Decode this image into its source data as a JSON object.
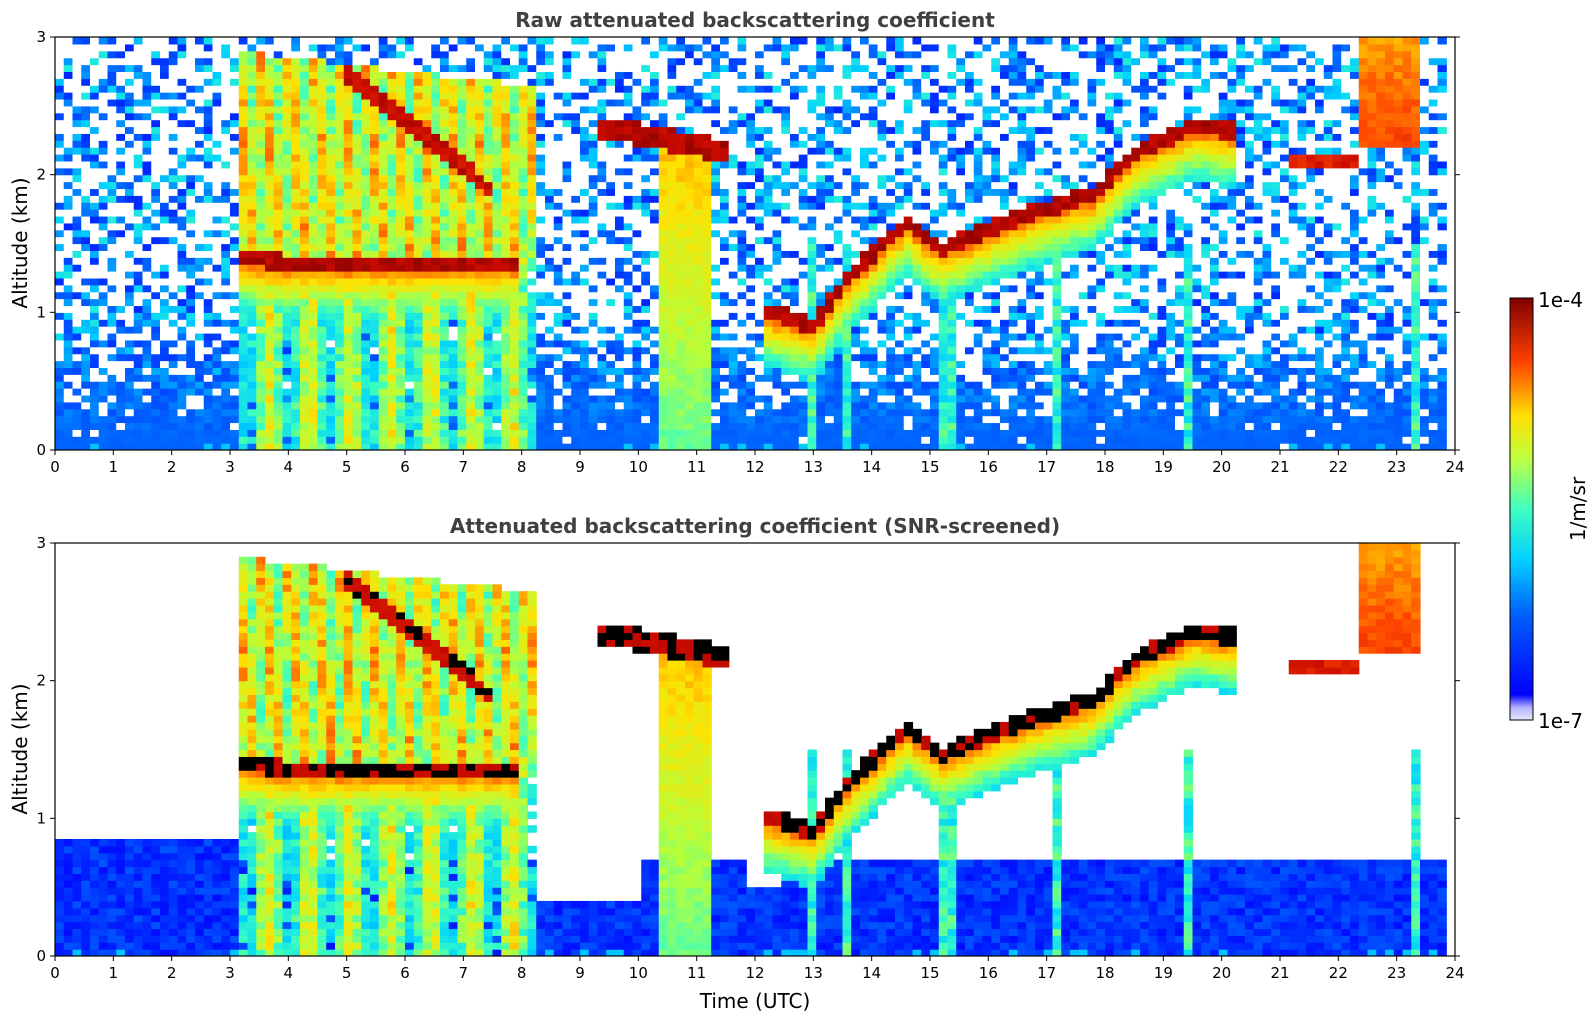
{
  "chart_data": [
    {
      "type": "heatmap",
      "title": "Raw attenuated backscattering coefficient",
      "xlabel": "",
      "ylabel": "Altitude (km)",
      "xlim": [
        0,
        24
      ],
      "ylim": [
        0,
        3
      ],
      "x_ticks": [
        "0",
        "1",
        "2",
        "3",
        "4",
        "5",
        "6",
        "7",
        "8",
        "9",
        "10",
        "11",
        "12",
        "13",
        "14",
        "15",
        "16",
        "17",
        "18",
        "19",
        "20",
        "21",
        "22",
        "23",
        "24"
      ],
      "y_ticks": [
        "0",
        "1",
        "2",
        "3"
      ],
      "snr_screened": false
    },
    {
      "type": "heatmap",
      "title": "Attenuated backscattering coefficient (SNR-screened)",
      "xlabel": "Time (UTC)",
      "ylabel": "Altitude (km)",
      "xlim": [
        0,
        24
      ],
      "ylim": [
        0,
        3
      ],
      "x_ticks": [
        "0",
        "1",
        "2",
        "3",
        "4",
        "5",
        "6",
        "7",
        "8",
        "9",
        "10",
        "11",
        "12",
        "13",
        "14",
        "15",
        "16",
        "17",
        "18",
        "19",
        "20",
        "21",
        "22",
        "23",
        "24"
      ],
      "y_ticks": [
        "0",
        "1",
        "2",
        "3"
      ],
      "snr_screened": true
    }
  ],
  "colorbar": {
    "label": "1/m/sr",
    "max_label": "1e-4",
    "min_label": "1e-7",
    "scale": "log",
    "colormap": "jet"
  },
  "layers": {
    "cloud_base_km": [
      [
        3.2,
        1.35
      ],
      [
        4.0,
        1.3
      ],
      [
        5.0,
        1.3
      ],
      [
        6.0,
        1.3
      ],
      [
        7.0,
        1.3
      ],
      [
        8.0,
        1.3
      ],
      [
        12.2,
        0.95
      ],
      [
        13.0,
        0.85
      ],
      [
        13.6,
        1.2
      ],
      [
        14.6,
        1.6
      ],
      [
        15.2,
        1.4
      ],
      [
        16.0,
        1.55
      ],
      [
        17.0,
        1.7
      ],
      [
        17.8,
        1.8
      ],
      [
        18.5,
        2.1
      ],
      [
        19.5,
        2.3
      ],
      [
        20.3,
        2.25
      ]
    ]
  }
}
